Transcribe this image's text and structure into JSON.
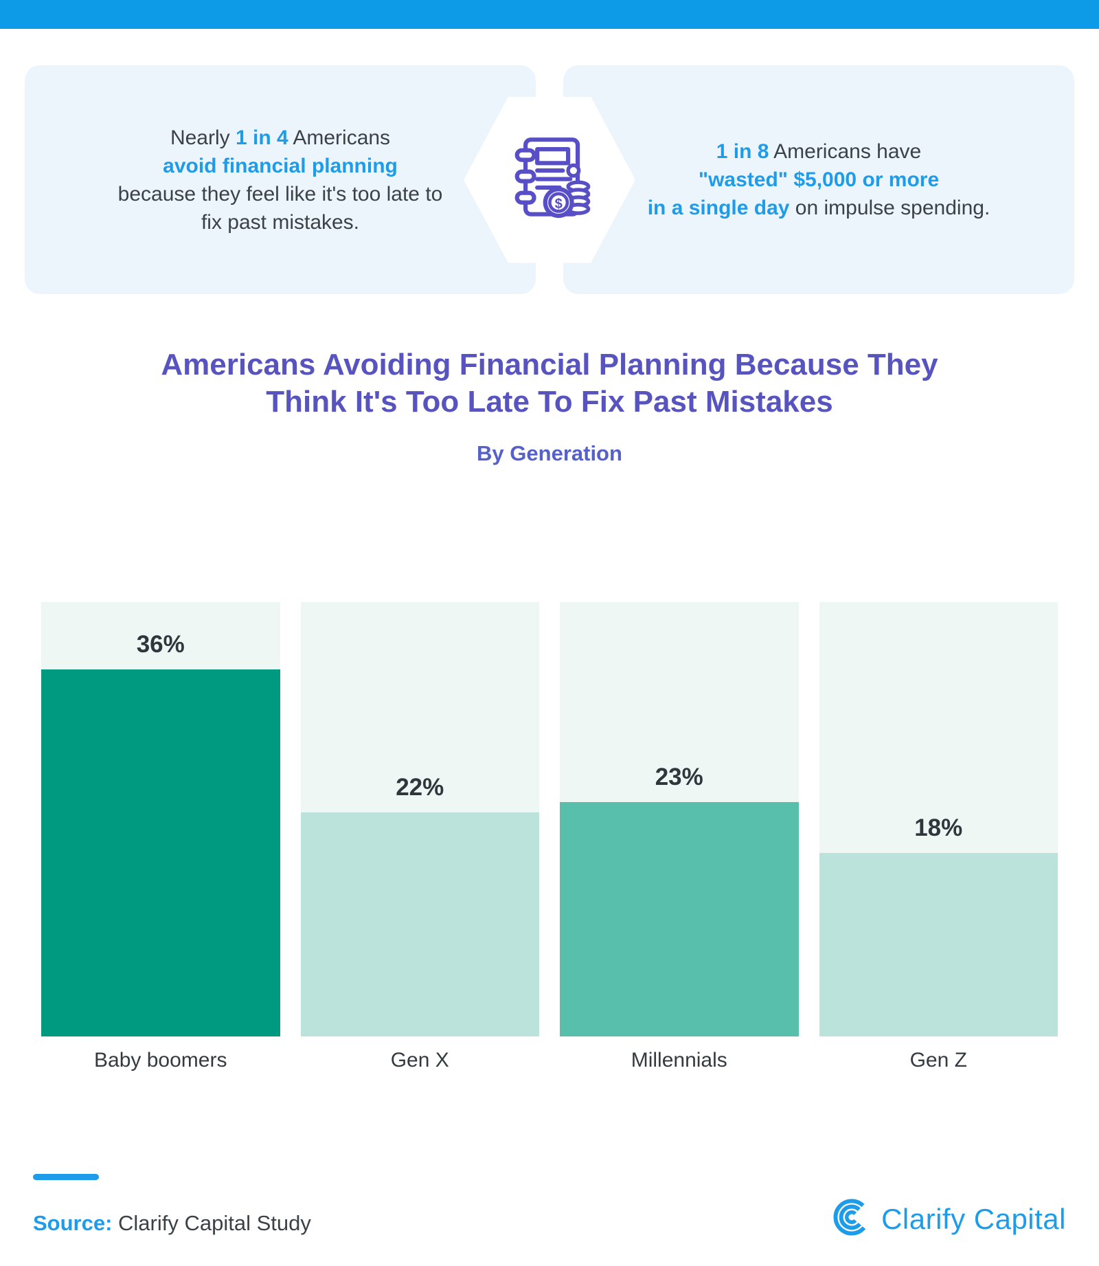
{
  "callouts": {
    "left": {
      "p1": "Nearly ",
      "p2": "1 in 4",
      "p3": " Americans",
      "p4": "avoid financial planning",
      "p5": "because they feel like it's too late to fix past mistakes."
    },
    "right": {
      "p1": "1 in 8",
      "p2": " Americans have",
      "p3": "\"wasted\" $5,000 or more",
      "p4": "in a single day",
      "p5": " on impulse spending."
    },
    "icon": "finance-notebook-coins-icon"
  },
  "heading": {
    "title_line1": "Americans Avoiding Financial Planning Because They",
    "title_line2": "Think It's Too Late To Fix Past Mistakes",
    "subtitle": "By Generation"
  },
  "chart_data": {
    "type": "bar",
    "title": "Americans Avoiding Financial Planning Because They Think It's Too Late To Fix Past Mistakes",
    "subtitle": "By Generation",
    "categories": [
      "Baby boomers",
      "Gen X",
      "Millennials",
      "Gen Z"
    ],
    "values": [
      36,
      22,
      23,
      18
    ],
    "value_labels": [
      "36%",
      "22%",
      "23%",
      "18%"
    ],
    "bar_colors": [
      "#009A80",
      "#BCE2DC",
      "#58BFAD",
      "#BCE2DC"
    ],
    "track_color": "#EFF7F5",
    "axis_max": 42.6,
    "ylim": [
      0,
      42.6
    ],
    "grid": false,
    "legend": false,
    "xlabel": "",
    "ylabel": ""
  },
  "footer": {
    "source_label": "Source:",
    "source_text": " Clarify Capital Study",
    "logo_text": "Clarify Capital"
  },
  "colors": {
    "top_bar_blue": "#0D9BE8",
    "accent_blue": "#1E9BE9",
    "callout_bg": "#EDF5FC",
    "dark_text": "#3A4248",
    "title_purple": "#5754C0",
    "subtitle_purple": "#5560C8",
    "icon_purple": "#584FC6",
    "bar_dark_teal": "#009A80",
    "bar_medium_teal": "#58BFAD",
    "bar_light_mint": "#BCE2DC",
    "bar_track": "#EFF7F5",
    "value_label_dark": "#2E373C",
    "logo_blue": "#1C9CE9"
  }
}
